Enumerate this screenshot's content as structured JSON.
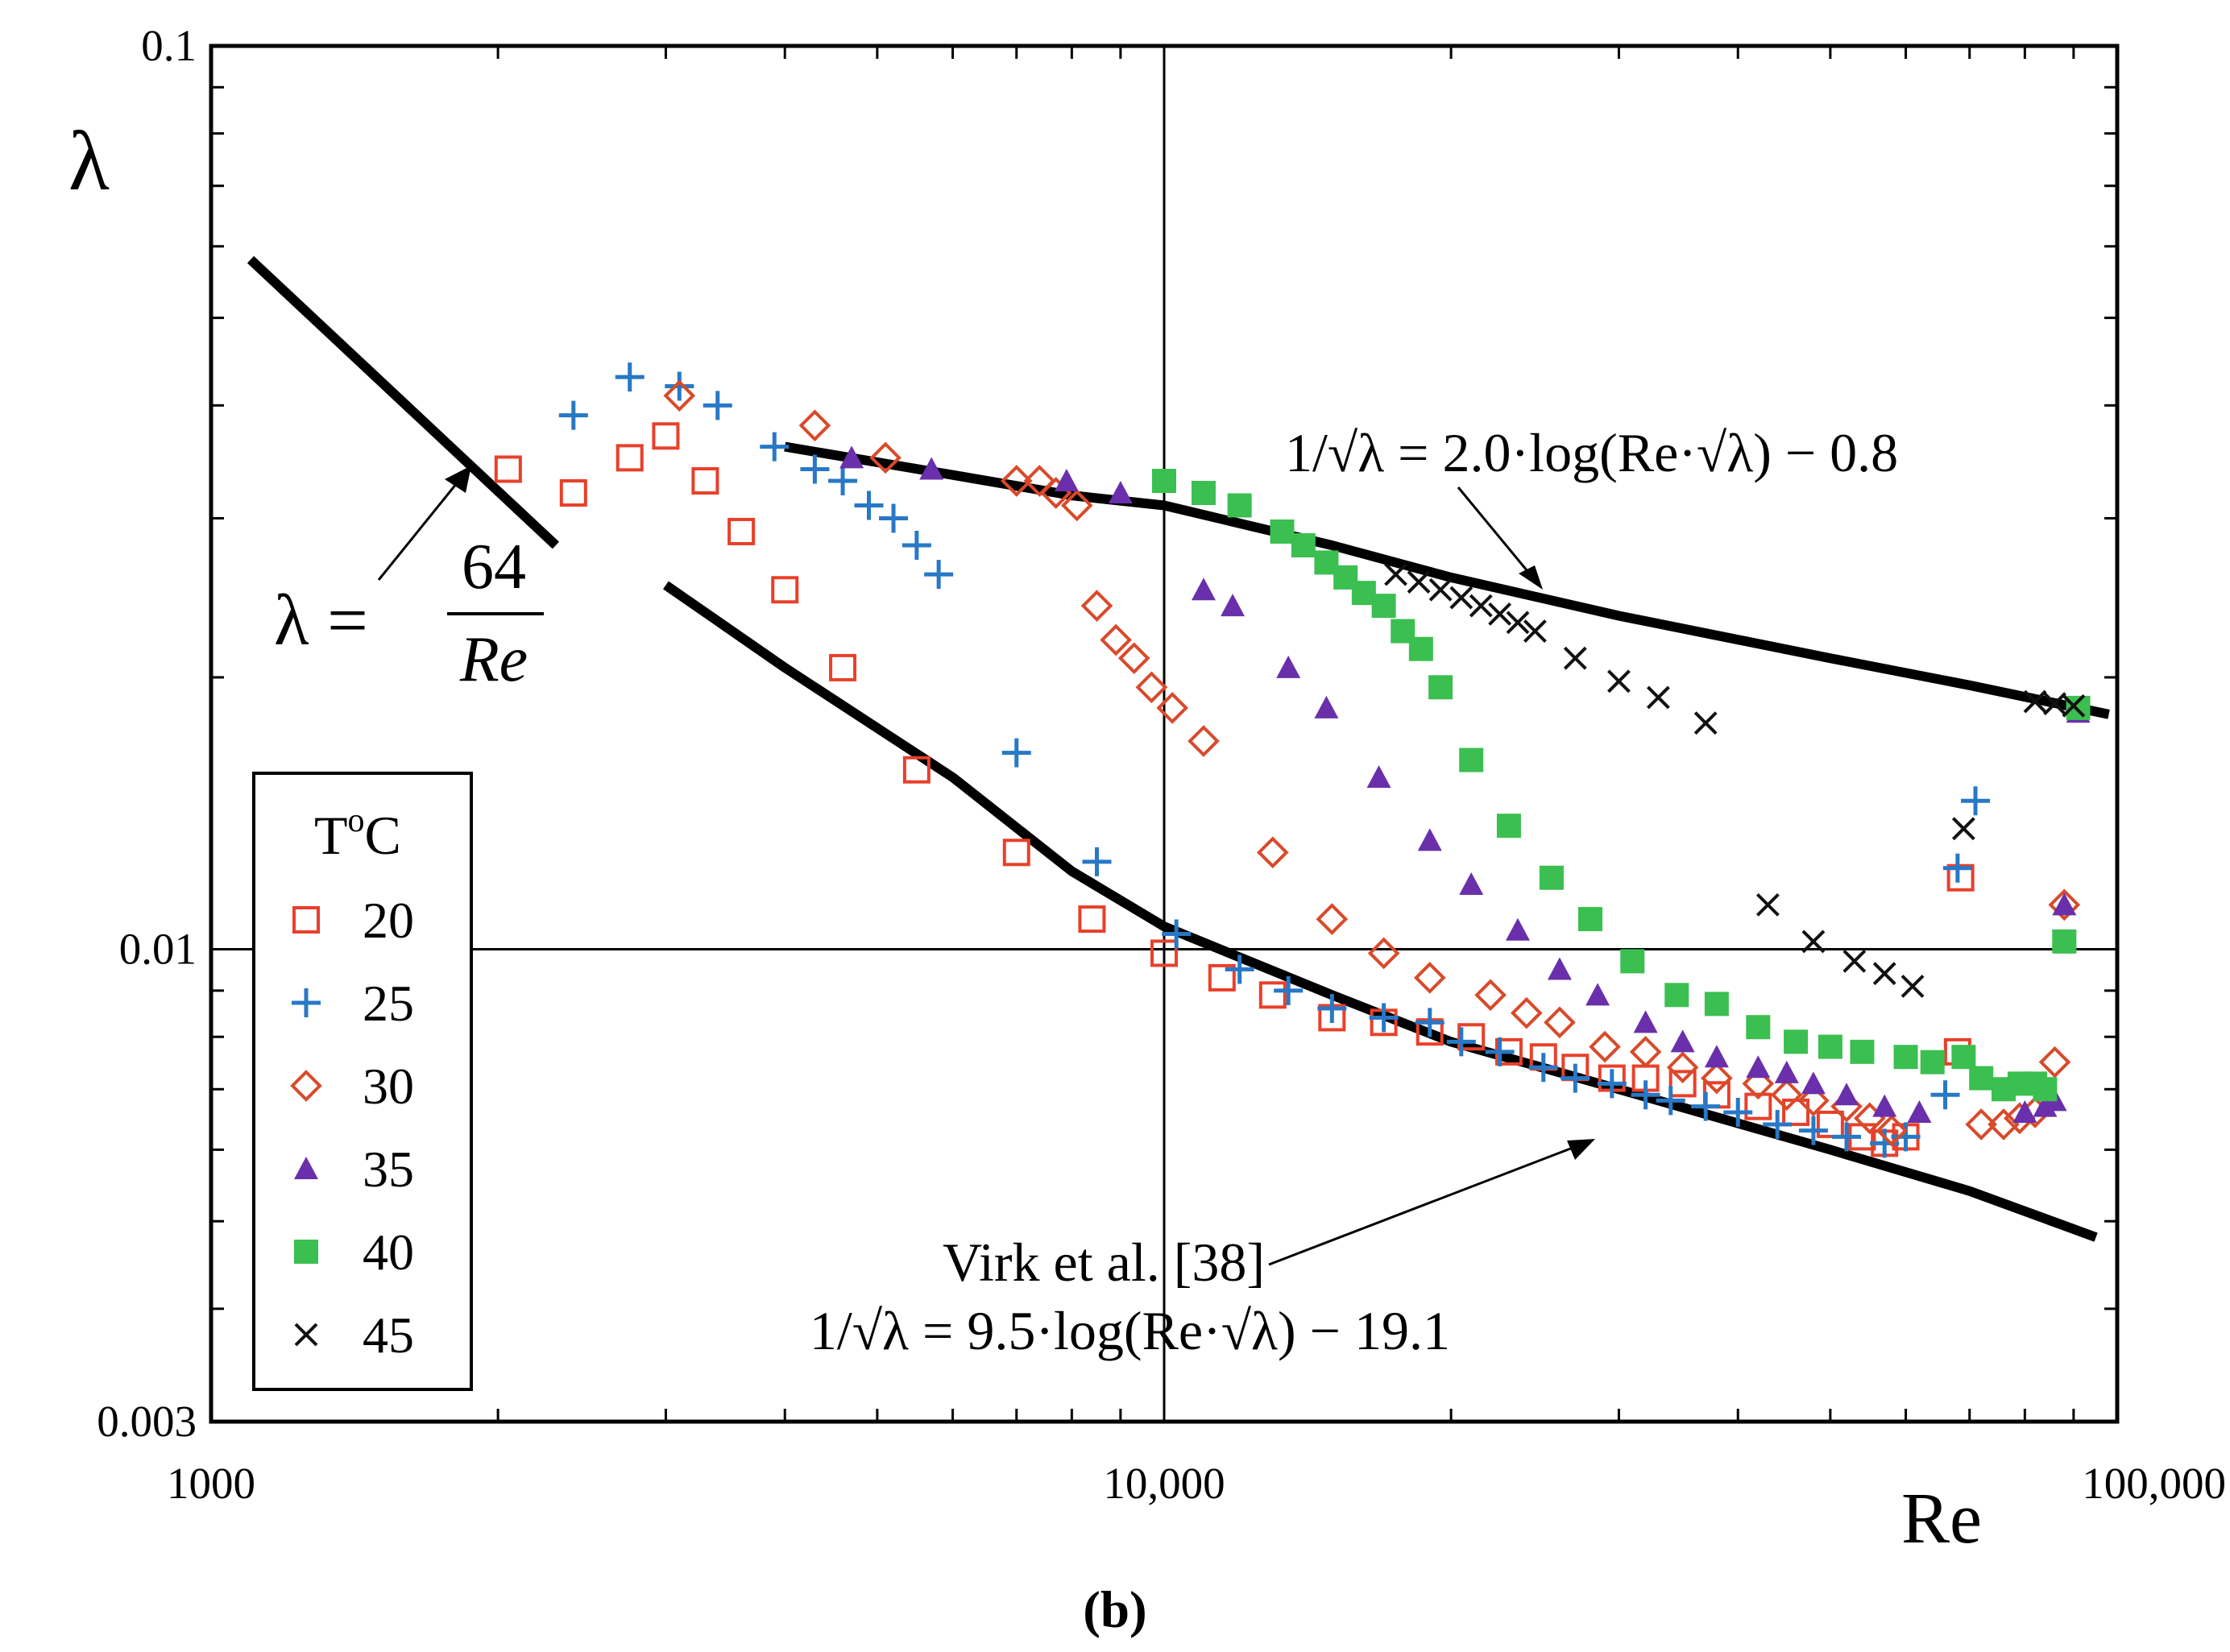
{
  "chart_data": {
    "type": "scatter",
    "xscale": "log",
    "yscale": "log",
    "xlim": [
      1000,
      100000
    ],
    "ylim": [
      0.003,
      0.1
    ],
    "xlabel": "Re",
    "ylabel": "λ",
    "x_ticks": [
      {
        "value": 1000,
        "label": "1000"
      },
      {
        "value": 10000,
        "label": "10,000"
      },
      {
        "value": 100000,
        "label": "100,000"
      }
    ],
    "y_ticks": [
      {
        "value": 0.1,
        "label": "0.1"
      },
      {
        "value": 0.01,
        "label": "0.01"
      },
      {
        "value": 0.003,
        "label": "0.003"
      }
    ],
    "grid": "reference lines at Re = 10,000 and λ = 0.01",
    "caption": "(b)",
    "legend": {
      "title": "ToC",
      "title_base": "T",
      "title_sup": "o",
      "title_unit": "C",
      "placement": "bottom-left"
    },
    "series": [
      {
        "name": "20",
        "marker": "open-square",
        "color": "#e8402a",
        "points": [
          [
            2050,
            0.034
          ],
          [
            2400,
            0.032
          ],
          [
            2750,
            0.035
          ],
          [
            3000,
            0.037
          ],
          [
            3300,
            0.033
          ],
          [
            3600,
            0.029
          ],
          [
            4000,
            0.025
          ],
          [
            4600,
            0.0205
          ],
          [
            5500,
            0.0158
          ],
          [
            7000,
            0.0128
          ],
          [
            8400,
            0.0108
          ],
          [
            10000,
            0.0099
          ],
          [
            11500,
            0.0093
          ],
          [
            13000,
            0.0089
          ],
          [
            15000,
            0.0084
          ],
          [
            17000,
            0.0083
          ],
          [
            19000,
            0.0081
          ],
          [
            21000,
            0.008
          ],
          [
            23000,
            0.0077
          ],
          [
            25000,
            0.0076
          ],
          [
            27000,
            0.0074
          ],
          [
            29500,
            0.0072
          ],
          [
            32000,
            0.0072
          ],
          [
            35000,
            0.0071
          ],
          [
            38000,
            0.0069
          ],
          [
            42000,
            0.0067
          ],
          [
            46000,
            0.0066
          ],
          [
            50000,
            0.0064
          ],
          [
            54000,
            0.0062
          ],
          [
            57000,
            0.0061
          ],
          [
            60000,
            0.0062
          ],
          [
            68000,
            0.0077
          ],
          [
            68500,
            0.012
          ]
        ]
      },
      {
        "name": "25",
        "marker": "plus",
        "color": "#2878c6",
        "points": [
          [
            2400,
            0.039
          ],
          [
            2750,
            0.043
          ],
          [
            3100,
            0.042
          ],
          [
            3400,
            0.04
          ],
          [
            3900,
            0.036
          ],
          [
            4300,
            0.034
          ],
          [
            4600,
            0.033
          ],
          [
            4900,
            0.031
          ],
          [
            5200,
            0.03
          ],
          [
            5500,
            0.028
          ],
          [
            5800,
            0.026
          ],
          [
            7000,
            0.0165
          ],
          [
            8500,
            0.0125
          ],
          [
            10300,
            0.0104
          ],
          [
            12000,
            0.0095
          ],
          [
            13500,
            0.009
          ],
          [
            15000,
            0.0086
          ],
          [
            17000,
            0.0084
          ],
          [
            19000,
            0.0083
          ],
          [
            20500,
            0.0079
          ],
          [
            22500,
            0.0077
          ],
          [
            25000,
            0.0074
          ],
          [
            27000,
            0.0072
          ],
          [
            29500,
            0.0071
          ],
          [
            32000,
            0.0069
          ],
          [
            34000,
            0.0068
          ],
          [
            37000,
            0.0067
          ],
          [
            40000,
            0.0066
          ],
          [
            44000,
            0.0064
          ],
          [
            48000,
            0.0063
          ],
          [
            52000,
            0.0062
          ],
          [
            57000,
            0.0061
          ],
          [
            60000,
            0.0062
          ],
          [
            66000,
            0.0069
          ],
          [
            71000,
            0.0146
          ],
          [
            68000,
            0.0123
          ]
        ]
      },
      {
        "name": "30",
        "marker": "open-diamond",
        "color": "#d84a2a",
        "points": [
          [
            3100,
            0.041
          ],
          [
            4300,
            0.038
          ],
          [
            5100,
            0.035
          ],
          [
            7000,
            0.033
          ],
          [
            7400,
            0.033
          ],
          [
            7700,
            0.032
          ],
          [
            8100,
            0.031
          ],
          [
            8500,
            0.024
          ],
          [
            8900,
            0.022
          ],
          [
            9300,
            0.021
          ],
          [
            9700,
            0.0195
          ],
          [
            10200,
            0.0185
          ],
          [
            11000,
            0.017
          ],
          [
            13000,
            0.0128
          ],
          [
            15000,
            0.0108
          ],
          [
            17000,
            0.0099
          ],
          [
            19000,
            0.0093
          ],
          [
            22000,
            0.0089
          ],
          [
            24000,
            0.0085
          ],
          [
            26000,
            0.0083
          ],
          [
            29000,
            0.0078
          ],
          [
            32000,
            0.0077
          ],
          [
            35000,
            0.0074
          ],
          [
            38000,
            0.0072
          ],
          [
            42000,
            0.0071
          ],
          [
            45000,
            0.0069
          ],
          [
            48000,
            0.0068
          ],
          [
            52000,
            0.0067
          ],
          [
            55000,
            0.0065
          ],
          [
            58000,
            0.0063
          ],
          [
            72000,
            0.0064
          ],
          [
            76000,
            0.0064
          ],
          [
            79000,
            0.0065
          ],
          [
            82000,
            0.0066
          ],
          [
            86000,
            0.0075
          ],
          [
            88000,
            0.0112
          ]
        ]
      },
      {
        "name": "35",
        "marker": "filled-triangle",
        "color": "#6a2faa",
        "points": [
          [
            4700,
            0.035
          ],
          [
            5700,
            0.034
          ],
          [
            7900,
            0.033
          ],
          [
            9000,
            0.032
          ],
          [
            11000,
            0.025
          ],
          [
            11800,
            0.024
          ],
          [
            13500,
            0.0205
          ],
          [
            14800,
            0.0185
          ],
          [
            16800,
            0.0155
          ],
          [
            19000,
            0.0132
          ],
          [
            21000,
            0.0118
          ],
          [
            23500,
            0.0105
          ],
          [
            26000,
            0.0095
          ],
          [
            28500,
            0.0089
          ],
          [
            32000,
            0.0083
          ],
          [
            35000,
            0.0079
          ],
          [
            38000,
            0.0076
          ],
          [
            42000,
            0.0074
          ],
          [
            45000,
            0.0073
          ],
          [
            48000,
            0.0071
          ],
          [
            52000,
            0.0069
          ],
          [
            57000,
            0.0067
          ],
          [
            62000,
            0.0066
          ],
          [
            80000,
            0.0066
          ],
          [
            84000,
            0.0067
          ],
          [
            86000,
            0.0068
          ],
          [
            88000,
            0.0112
          ],
          [
            91000,
            0.0183
          ]
        ]
      },
      {
        "name": "40",
        "marker": "filled-square",
        "color": "#3bbf50",
        "points": [
          [
            10000,
            0.033
          ],
          [
            11000,
            0.032
          ],
          [
            12000,
            0.031
          ],
          [
            13300,
            0.029
          ],
          [
            14000,
            0.028
          ],
          [
            14800,
            0.0268
          ],
          [
            15500,
            0.0258
          ],
          [
            16200,
            0.0248
          ],
          [
            17000,
            0.024
          ],
          [
            17800,
            0.0225
          ],
          [
            18600,
            0.0215
          ],
          [
            19500,
            0.0195
          ],
          [
            21000,
            0.0162
          ],
          [
            23000,
            0.0137
          ],
          [
            25500,
            0.012
          ],
          [
            28000,
            0.0108
          ],
          [
            31000,
            0.0097
          ],
          [
            34500,
            0.0089
          ],
          [
            38000,
            0.0087
          ],
          [
            42000,
            0.0082
          ],
          [
            46000,
            0.0079
          ],
          [
            50000,
            0.0078
          ],
          [
            54000,
            0.0077
          ],
          [
            60000,
            0.0076
          ],
          [
            64000,
            0.0075
          ],
          [
            69000,
            0.0076
          ],
          [
            72000,
            0.0072
          ],
          [
            76000,
            0.007
          ],
          [
            79000,
            0.0071
          ],
          [
            82000,
            0.0071
          ],
          [
            84000,
            0.007
          ],
          [
            88000,
            0.0102
          ],
          [
            91000,
            0.0185
          ]
        ]
      },
      {
        "name": "45",
        "marker": "x",
        "color": "#111111",
        "points": [
          [
            17500,
            0.026
          ],
          [
            18500,
            0.0255
          ],
          [
            19500,
            0.025
          ],
          [
            20500,
            0.0245
          ],
          [
            21500,
            0.024
          ],
          [
            22500,
            0.0235
          ],
          [
            23500,
            0.023
          ],
          [
            24500,
            0.0225
          ],
          [
            27000,
            0.021
          ],
          [
            30000,
            0.0198
          ],
          [
            33000,
            0.019
          ],
          [
            37000,
            0.0178
          ],
          [
            43000,
            0.0112
          ],
          [
            48000,
            0.0102
          ],
          [
            53000,
            0.0097
          ],
          [
            57000,
            0.0094
          ],
          [
            61000,
            0.0091
          ],
          [
            69000,
            0.0136
          ],
          [
            82000,
            0.0188
          ],
          [
            86000,
            0.0187
          ],
          [
            90000,
            0.0186
          ]
        ]
      }
    ],
    "curves": [
      {
        "id": "laminar",
        "points": [
          [
            1100,
            0.058
          ],
          [
            2300,
            0.028
          ]
        ],
        "label": {
          "prefix": "λ =",
          "numerator": "64",
          "denominator": "Re"
        }
      },
      {
        "id": "prandtl",
        "points": [
          [
            4000,
            0.036
          ],
          [
            6000,
            0.0335
          ],
          [
            8000,
            0.0318
          ],
          [
            10000,
            0.031
          ],
          [
            15000,
            0.028
          ],
          [
            20000,
            0.0258
          ],
          [
            30000,
            0.0234
          ],
          [
            50000,
            0.021
          ],
          [
            70000,
            0.0196
          ],
          [
            98000,
            0.0182
          ]
        ],
        "label": {
          "text": "1/√λ = 2.0·log(Re·√λ) − 0.8"
        }
      },
      {
        "id": "virk",
        "points": [
          [
            3000,
            0.0253
          ],
          [
            4000,
            0.0205
          ],
          [
            6000,
            0.0155
          ],
          [
            8000,
            0.0122
          ],
          [
            10000,
            0.0106
          ],
          [
            15000,
            0.0089
          ],
          [
            20000,
            0.0079
          ],
          [
            30000,
            0.007
          ],
          [
            50000,
            0.006
          ],
          [
            70000,
            0.0054
          ],
          [
            95000,
            0.0048
          ]
        ],
        "label": {
          "line1": "Virk et al. [38]",
          "line2": "1/√λ = 9.5·log(Re·√λ) − 19.1"
        }
      }
    ]
  }
}
